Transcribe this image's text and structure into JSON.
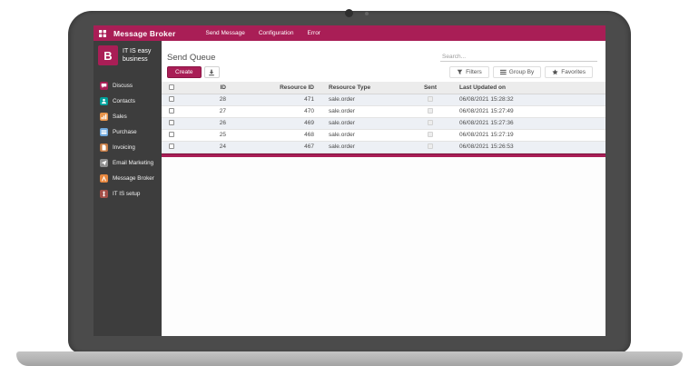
{
  "topbar": {
    "title": "Message Broker",
    "menu": [
      {
        "label": "Send Message"
      },
      {
        "label": "Configuration"
      },
      {
        "label": "Error"
      }
    ]
  },
  "sidebar": {
    "logo_letter": "B",
    "logo_name_line1": "IT IS easy",
    "logo_name_line2": "business",
    "items": [
      {
        "label": "Discuss",
        "icon": "discuss-icon",
        "color": "#a91e56"
      },
      {
        "label": "Contacts",
        "icon": "contacts-icon",
        "color": "#00a09b"
      },
      {
        "label": "Sales",
        "icon": "sales-icon",
        "color": "#e8944a"
      },
      {
        "label": "Purchase",
        "icon": "purchase-icon",
        "color": "#6fa8dc"
      },
      {
        "label": "Invoicing",
        "icon": "invoicing-icon",
        "color": "#c87d45"
      },
      {
        "label": "Email Marketing",
        "icon": "email-marketing-icon",
        "color": "#8f8f8f"
      },
      {
        "label": "Message Broker",
        "icon": "message-broker-icon",
        "color": "#e8883f"
      },
      {
        "label": "IT IS setup",
        "icon": "setup-icon",
        "color": "#a34f48"
      }
    ]
  },
  "panel": {
    "title": "Send Queue",
    "create_label": "Create",
    "search_placeholder": "Search...",
    "filters_label": "Filters",
    "group_by_label": "Group By",
    "favorites_label": "Favorites"
  },
  "table": {
    "headers": [
      "ID",
      "Resource ID",
      "Resource Type",
      "Sent",
      "Last Updated on"
    ],
    "rows": [
      {
        "id": "28",
        "resource_id": "471",
        "resource_type": "sale.order",
        "sent": false,
        "last_updated_on": "06/08/2021 15:28:32"
      },
      {
        "id": "27",
        "resource_id": "470",
        "resource_type": "sale.order",
        "sent": false,
        "last_updated_on": "06/08/2021 15:27:49"
      },
      {
        "id": "26",
        "resource_id": "469",
        "resource_type": "sale.order",
        "sent": false,
        "last_updated_on": "06/08/2021 15:27:36"
      },
      {
        "id": "25",
        "resource_id": "468",
        "resource_type": "sale.order",
        "sent": false,
        "last_updated_on": "06/08/2021 15:27:19"
      },
      {
        "id": "24",
        "resource_id": "467",
        "resource_type": "sale.order",
        "sent": false,
        "last_updated_on": "06/08/2021 15:26:53"
      }
    ]
  },
  "colors": {
    "accent": "#a91e56",
    "sidebar_bg": "#3d3d3d",
    "bezel": "#4b4b4b",
    "laptop_base": "#b5b5b5",
    "row_alt": "#edf0f5"
  }
}
